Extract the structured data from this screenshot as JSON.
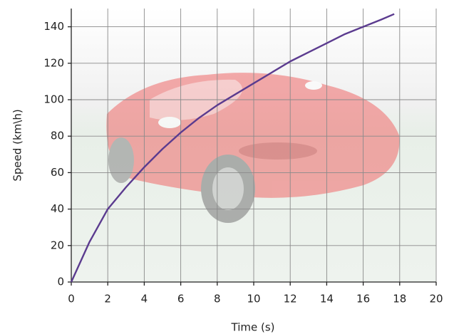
{
  "chart_data": {
    "type": "line",
    "x_label": "Time (s)",
    "y_label": "Speed (km\\h)",
    "x": [
      0,
      1,
      2,
      3,
      4,
      5,
      6,
      7,
      8,
      9,
      10,
      11,
      12,
      13,
      14,
      15,
      16,
      17,
      17.7
    ],
    "series": [
      {
        "color": "#5b3b8f",
        "values": [
          0,
          22,
          40,
          52,
          63,
          73,
          82,
          90,
          97,
          103,
          109,
          115,
          121,
          126,
          131,
          136,
          140,
          144,
          147
        ]
      }
    ],
    "xlim": [
      0,
      20
    ],
    "xticks": [
      0,
      2,
      4,
      6,
      8,
      10,
      12,
      14,
      16,
      18,
      20
    ],
    "ylim": [
      0,
      150
    ],
    "yticks": [
      0,
      20,
      40,
      60,
      80,
      100,
      120,
      140
    ],
    "grid": true
  }
}
